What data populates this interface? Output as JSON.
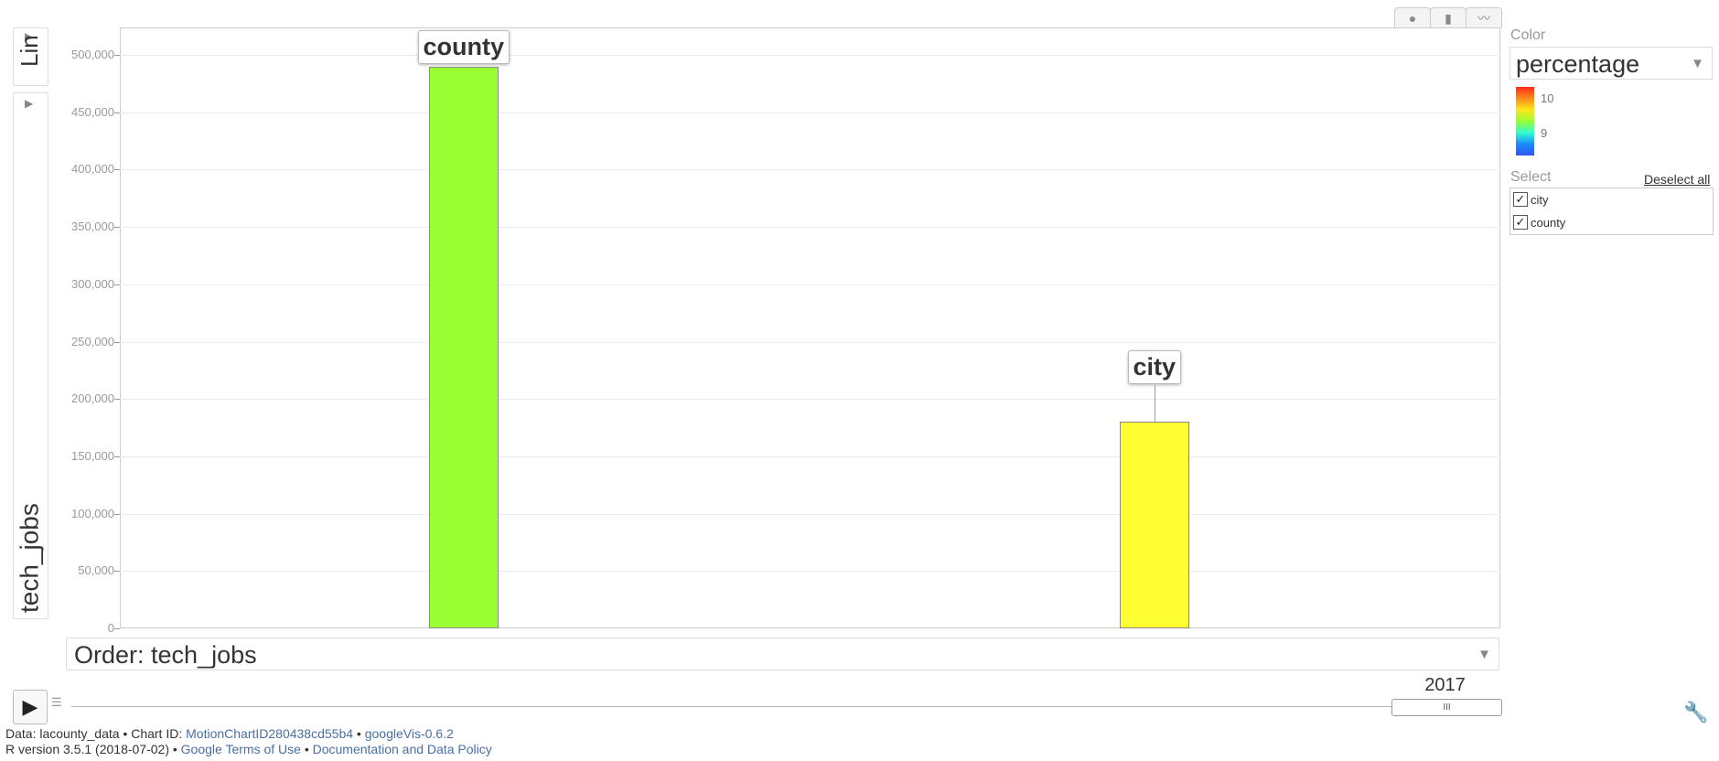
{
  "chart_data": {
    "type": "bar",
    "categories": [
      "county",
      "city"
    ],
    "values": [
      490000,
      180000
    ],
    "ylim": [
      0,
      525000
    ],
    "yticks": [
      0,
      50000,
      100000,
      150000,
      200000,
      250000,
      300000,
      350000,
      400000,
      450000,
      500000
    ],
    "ytick_labels": [
      "0",
      "50,000",
      "100,000",
      "150,000",
      "200,000",
      "250,000",
      "300,000",
      "350,000",
      "400,000",
      "450,000",
      "500,000"
    ],
    "colors": [
      "#99ff33",
      "#ffff33"
    ],
    "grid": true
  },
  "left_panel": {
    "y_scale": "Lin",
    "y_variable": "tech_jobs"
  },
  "order": {
    "label": "Order: tech_jobs"
  },
  "color_panel": {
    "label": "Color",
    "variable": "percentage",
    "legend_ticks": [
      "10",
      "9"
    ]
  },
  "select_panel": {
    "label": "Select",
    "deselect_all": "Deselect all",
    "items": [
      {
        "label": "city",
        "checked": true
      },
      {
        "label": "county",
        "checked": true
      }
    ]
  },
  "time": {
    "year": "2017"
  },
  "footer": {
    "data_prefix": "Data: lacounty_data • Chart ID:",
    "chart_id": "MotionChartID280438cd55b4",
    "bullet": "•",
    "googlevis": "googleVis-0.6.2",
    "r_version": "R version 3.5.1 (2018-07-02) •",
    "terms": "Google Terms of Use",
    "docs": "Documentation and Data Policy"
  },
  "icons": {
    "bubble": "bubble-chart-icon",
    "bar": "bar-chart-icon",
    "line": "line-chart-icon",
    "wrench": "wrench-icon"
  }
}
